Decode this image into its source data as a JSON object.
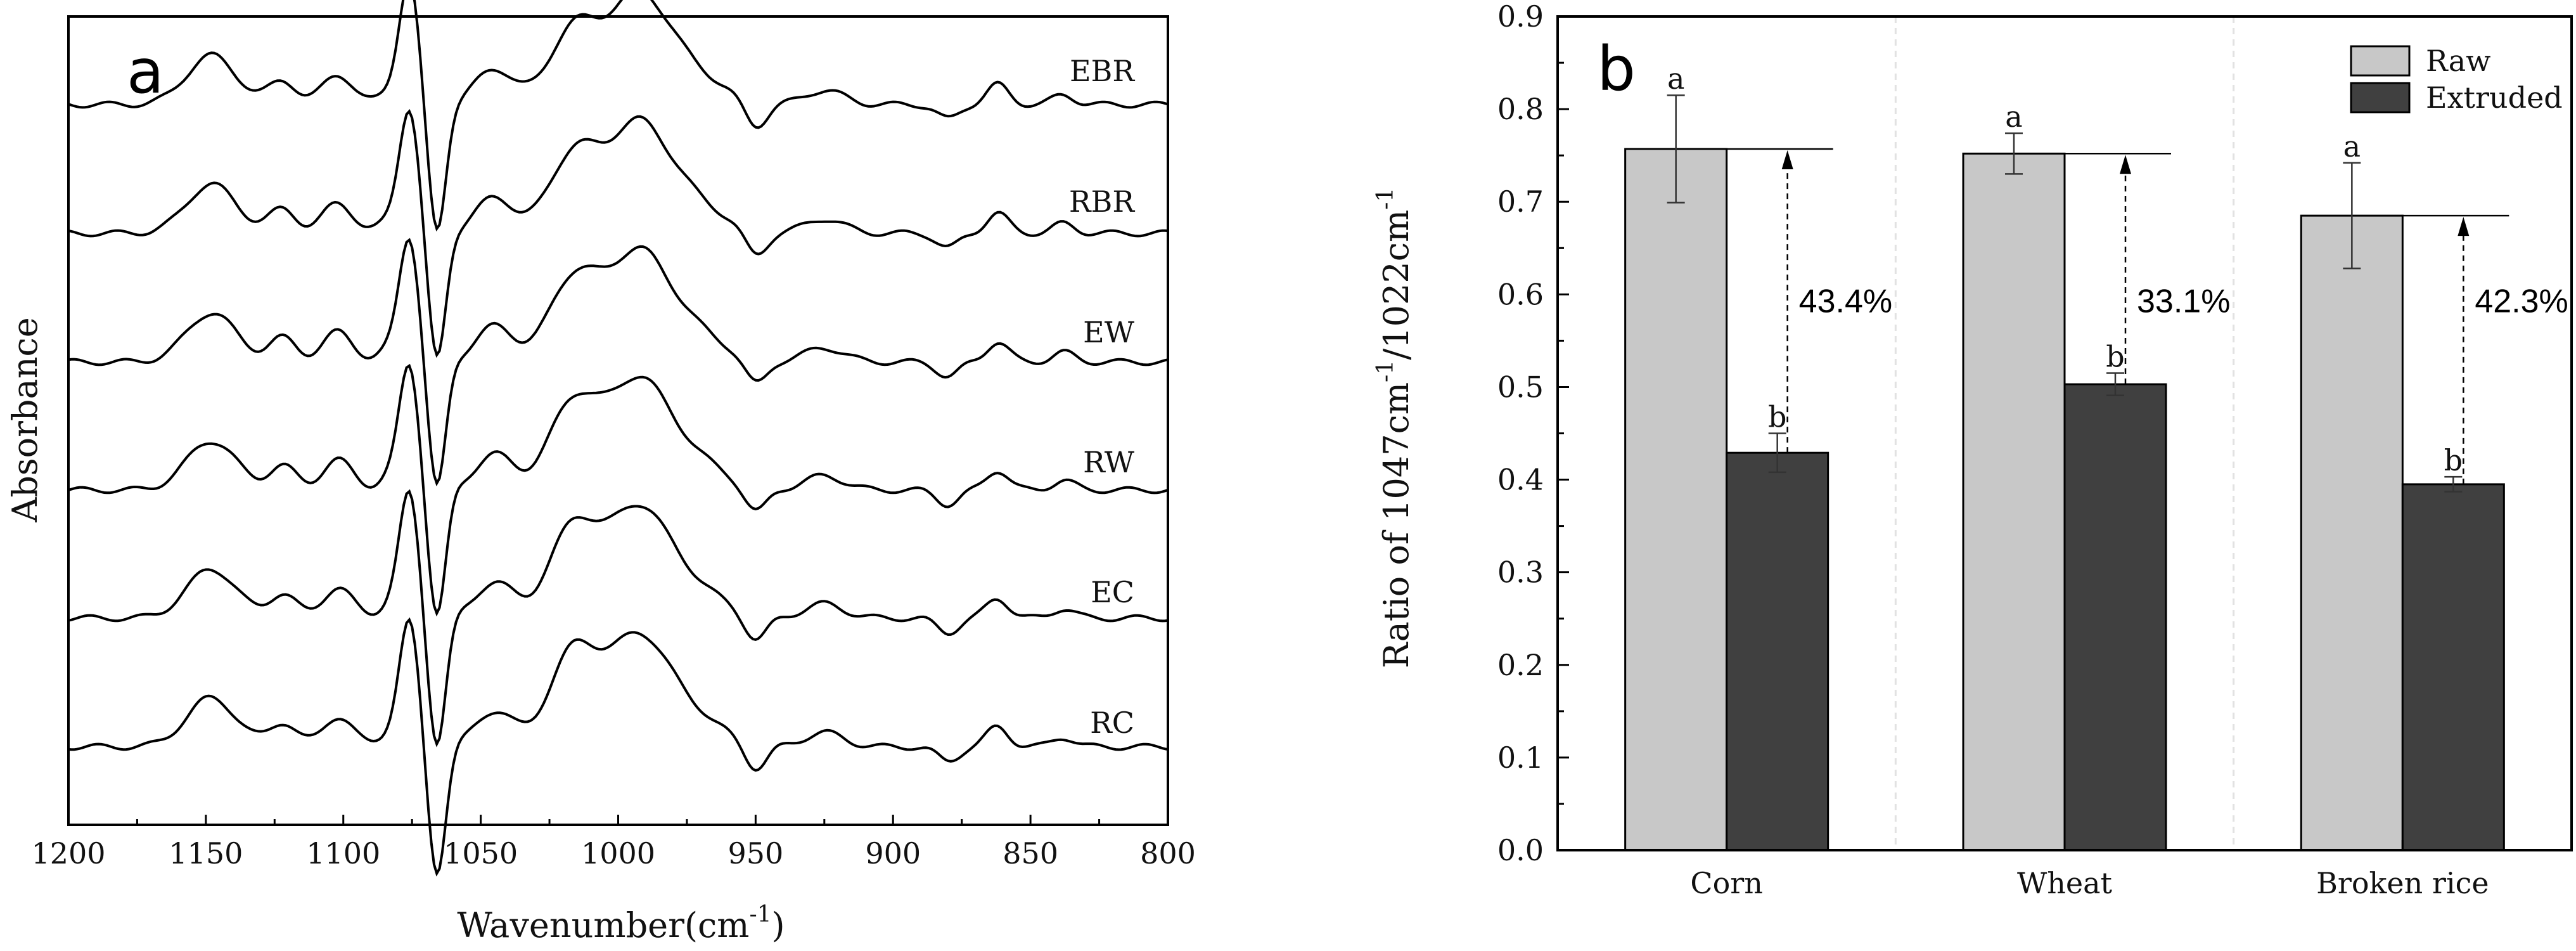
{
  "chart_data": [
    {
      "type": "line",
      "panel": "a",
      "xlabel": "Wavenumber",
      "xlabel_unit": "(cm",
      "xlabel_exp": "-1",
      "xlabel_close": ")",
      "ylabel": "Absorbance",
      "xlim": [
        1200,
        800
      ],
      "x_ticks": [
        "1200",
        "1150",
        "1100",
        "1050",
        "1000",
        "950",
        "900",
        "850",
        "800"
      ],
      "series": [
        {
          "name": "EBR",
          "label": "EBR"
        },
        {
          "name": "RBR",
          "label": "RBR"
        },
        {
          "name": "EW",
          "label": "EW"
        },
        {
          "name": "RW",
          "label": "RW"
        },
        {
          "name": "EC",
          "label": "EC"
        },
        {
          "name": "RC",
          "label": "RC"
        }
      ]
    },
    {
      "type": "bar",
      "panel": "b",
      "categories": [
        "Corn",
        "Wheat",
        "Broken rice"
      ],
      "series": [
        {
          "name": "Raw",
          "values": [
            0.757,
            0.752,
            0.685
          ],
          "errors": [
            0.058,
            0.022,
            0.057
          ],
          "letters": [
            "a",
            "a",
            "a"
          ],
          "color": "#c8c8c8"
        },
        {
          "name": "Extruded",
          "values": [
            0.429,
            0.503,
            0.395
          ],
          "errors": [
            0.021,
            0.012,
            0.008
          ],
          "letters": [
            "b",
            "b",
            "b"
          ],
          "color": "#404040"
        }
      ],
      "reductions": [
        "43.4%",
        "33.1%",
        "42.3%"
      ],
      "ylabel_text": "Ratio of 1047cm",
      "ylabel_exp1": "-1",
      "ylabel_mid": "/1022cm",
      "ylabel_exp2": "-1",
      "ylim": [
        0.0,
        0.9
      ],
      "y_ticks": [
        "0.0",
        "0.1",
        "0.2",
        "0.3",
        "0.4",
        "0.5",
        "0.6",
        "0.7",
        "0.8",
        "0.9"
      ],
      "legend_position": "top-right"
    }
  ]
}
